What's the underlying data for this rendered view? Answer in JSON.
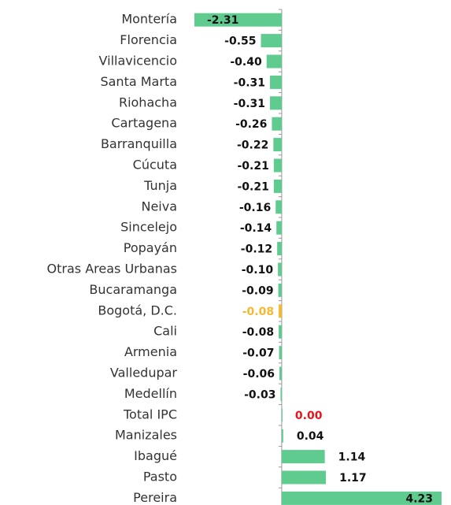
{
  "chart_data": {
    "type": "bar",
    "orientation": "horizontal",
    "categories": [
      "Montería",
      "Florencia",
      "Villavicencio",
      "Santa Marta",
      "Riohacha",
      "Cartagena",
      "Barranquilla",
      "Cúcuta",
      "Tunja",
      "Neiva",
      "Sincelejo",
      "Popayán",
      "Otras Areas Urbanas",
      "Bucaramanga",
      "Bogotá, D.C.",
      "Cali",
      "Armenia",
      "Valledupar",
      "Medellín",
      "Total IPC",
      "Manizales",
      "Ibagué",
      "Pasto",
      "Pereira"
    ],
    "values": [
      -2.31,
      -0.55,
      -0.4,
      -0.31,
      -0.31,
      -0.26,
      -0.22,
      -0.21,
      -0.21,
      -0.16,
      -0.14,
      -0.12,
      -0.1,
      -0.09,
      -0.08,
      -0.08,
      -0.07,
      -0.06,
      -0.03,
      0,
      0.04,
      1.14,
      1.17,
      4.23
    ],
    "value_labels": [
      "-2.31",
      "-0.55",
      "-0.40",
      "-0.31",
      "-0.31",
      "-0.26",
      "-0.22",
      "-0.21",
      "-0.21",
      "-0.16",
      "-0.14",
      "-0.12",
      "-0.10",
      "-0.09",
      "-0.08",
      "-0.08",
      "-0.07",
      "-0.06",
      "-0.03",
      "0.00",
      "0.04",
      "1.14",
      "1.17",
      "4.23"
    ],
    "colors": [
      "#5fcb8f",
      "#5fcb8f",
      "#5fcb8f",
      "#5fcb8f",
      "#5fcb8f",
      "#5fcb8f",
      "#5fcb8f",
      "#5fcb8f",
      "#5fcb8f",
      "#5fcb8f",
      "#5fcb8f",
      "#5fcb8f",
      "#5fcb8f",
      "#5fcb8f",
      "#f5b82e",
      "#5fcb8f",
      "#5fcb8f",
      "#5fcb8f",
      "#5fcb8f",
      "#5fcb8f",
      "#5fcb8f",
      "#5fcb8f",
      "#5fcb8f",
      "#5fcb8f"
    ],
    "value_label_colors": [
      "#111111",
      "#111111",
      "#111111",
      "#111111",
      "#111111",
      "#111111",
      "#111111",
      "#111111",
      "#111111",
      "#111111",
      "#111111",
      "#111111",
      "#111111",
      "#111111",
      "#f5b82e",
      "#111111",
      "#111111",
      "#111111",
      "#111111",
      "#e8141c",
      "#111111",
      "#111111",
      "#111111",
      "#111111"
    ],
    "xlim": [
      -2.31,
      4.23
    ]
  }
}
